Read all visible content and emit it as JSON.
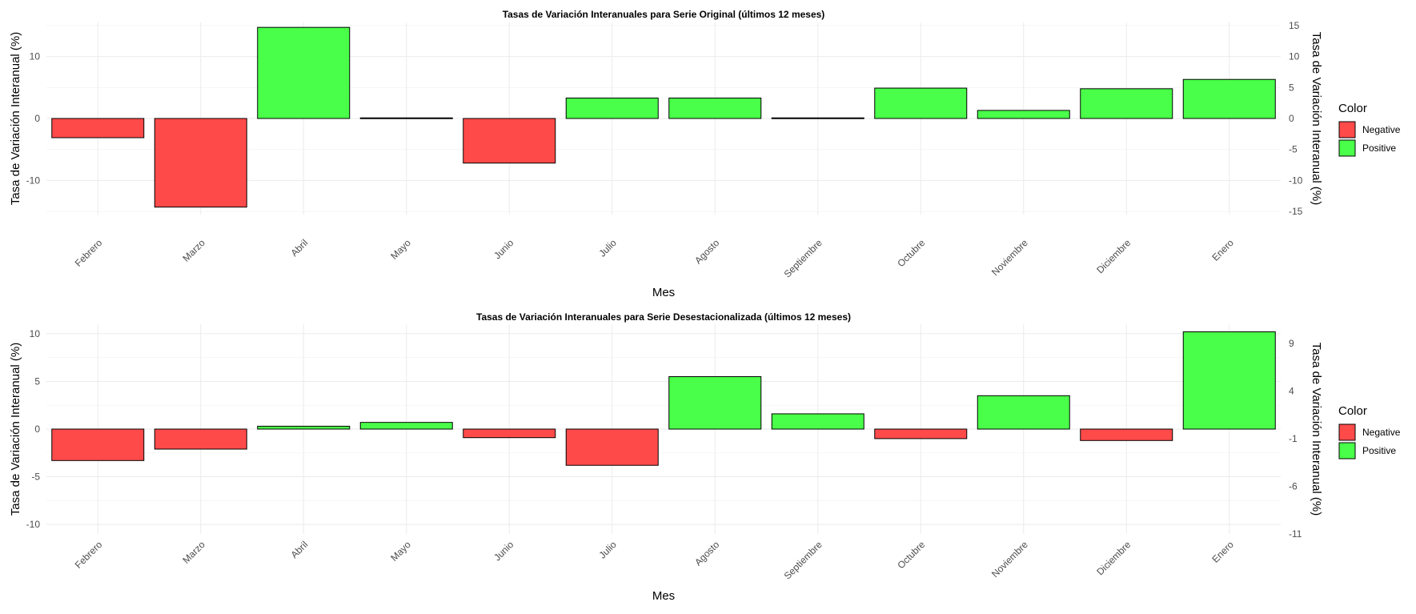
{
  "colors": {
    "negative": "#ff4a4a",
    "positive": "#49ff49"
  },
  "legend": {
    "title": "Color",
    "items": [
      "Negative",
      "Positive"
    ]
  },
  "chart_data": [
    {
      "type": "bar",
      "title": "Tasas de Variación Interanuales para Serie Original (últimos 12 meses)",
      "xlabel": "Mes",
      "ylabel": "Tasa de Variación Interanual (%)",
      "y2label": "Tasa de Variación Interanual (%)",
      "categories": [
        "Febrero",
        "Marzo",
        "Abril",
        "Mayo",
        "Junio",
        "Julio",
        "Agosto",
        "Septiembre",
        "Octubre",
        "Noviembre",
        "Diciembre",
        "Enero"
      ],
      "values": [
        -3.1,
        -14.3,
        14.7,
        0.1,
        -7.2,
        3.3,
        3.3,
        0.1,
        4.9,
        1.3,
        4.8,
        6.3
      ],
      "colors": [
        "Negative",
        "Negative",
        "Positive",
        "Positive",
        "Negative",
        "Positive",
        "Positive",
        "Positive",
        "Positive",
        "Positive",
        "Positive",
        "Positive"
      ],
      "ylim": [
        -15.5,
        15.5
      ],
      "yticks_left": [
        -10,
        0,
        10
      ],
      "yticks_right": [
        -15,
        -10,
        -5,
        0,
        5,
        10,
        15
      ],
      "grid": true,
      "legend_position": "right"
    },
    {
      "type": "bar",
      "title": "Tasas de Variación Interanuales para Serie Desestacionalizada (últimos 12 meses)",
      "xlabel": "Mes",
      "ylabel": "Tasa de Variación Interanual (%)",
      "y2label": "Tasa de Variación Interanual (%)",
      "categories": [
        "Febrero",
        "Marzo",
        "Abril",
        "Mayo",
        "Junio",
        "Julio",
        "Agosto",
        "Septiembre",
        "Octubre",
        "Noviembre",
        "Diciembre",
        "Enero"
      ],
      "values": [
        -3.3,
        -2.1,
        0.3,
        0.7,
        -0.9,
        -3.8,
        5.5,
        1.6,
        -1.0,
        3.5,
        -1.2,
        10.2
      ],
      "colors": [
        "Negative",
        "Negative",
        "Positive",
        "Positive",
        "Negative",
        "Negative",
        "Positive",
        "Positive",
        "Negative",
        "Positive",
        "Negative",
        "Positive"
      ],
      "ylim": [
        -11,
        11
      ],
      "yticks_left": [
        -10,
        -5,
        0,
        5,
        10
      ],
      "yticks_right": [
        -11,
        -6,
        -1,
        4,
        9
      ],
      "grid": true,
      "legend_position": "right"
    }
  ]
}
